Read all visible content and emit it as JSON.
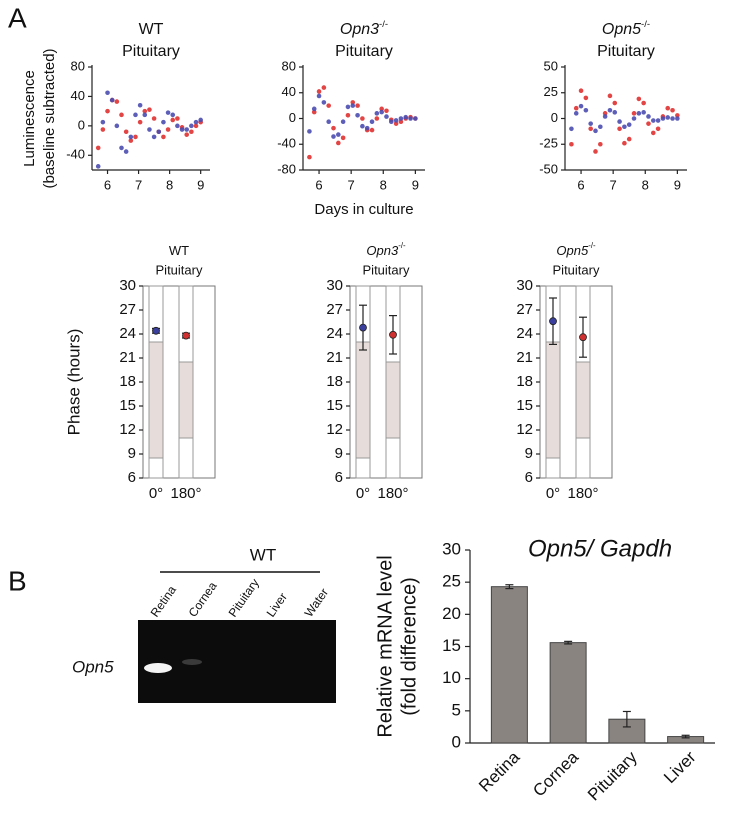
{
  "panel_labels": [
    "A",
    "B"
  ],
  "gel": {
    "group": "WT",
    "lanes": [
      "Retina",
      "Cornea",
      "Pituitary",
      "Liver",
      "Water"
    ],
    "gene": "Opn5"
  },
  "chart_data": [
    {
      "type": "line",
      "genotype": "WT",
      "title": "Pituitary",
      "ylabel": [
        "Luminescence",
        "(baseline subtracted)"
      ],
      "x": [
        5.7,
        5.85,
        6.0,
        6.15,
        6.3,
        6.45,
        6.6,
        6.75,
        6.9,
        7.05,
        7.2,
        7.35,
        7.5,
        7.65,
        7.8,
        7.95,
        8.1,
        8.25,
        8.4,
        8.55,
        8.7,
        8.85,
        9.0
      ],
      "series": [
        {
          "color": "#e03030",
          "values": [
            -30,
            -5,
            20,
            35,
            33,
            15,
            -8,
            -20,
            -15,
            5,
            20,
            22,
            10,
            -8,
            -15,
            -5,
            8,
            10,
            -2,
            -12,
            -8,
            0,
            5
          ]
        },
        {
          "color": "#4a4cb0",
          "values": [
            -55,
            5,
            45,
            35,
            0,
            -30,
            -35,
            -15,
            15,
            28,
            15,
            -5,
            -15,
            -8,
            5,
            18,
            15,
            0,
            -5,
            -5,
            0,
            5,
            8
          ]
        }
      ],
      "xlim": [
        5.5,
        9.3
      ],
      "xticks": [
        6,
        7,
        8,
        9
      ],
      "ylim": [
        -60,
        80
      ],
      "yticks": [
        -40,
        0,
        40,
        80
      ]
    },
    {
      "type": "line",
      "genotype": "Opn3",
      "genotype_sup": "-/-",
      "title": "Pituitary",
      "xlabel": "Days in culture",
      "x": [
        5.7,
        5.85,
        6.0,
        6.15,
        6.3,
        6.45,
        6.6,
        6.75,
        6.9,
        7.05,
        7.2,
        7.35,
        7.5,
        7.65,
        7.8,
        7.95,
        8.1,
        8.25,
        8.4,
        8.55,
        8.7,
        8.85,
        9.0
      ],
      "series": [
        {
          "color": "#e03030",
          "values": [
            -60,
            10,
            42,
            48,
            20,
            -15,
            -38,
            -30,
            5,
            25,
            20,
            0,
            -18,
            -18,
            0,
            15,
            12,
            -2,
            -8,
            -5,
            0,
            2,
            0
          ]
        },
        {
          "color": "#4a4cb0",
          "values": [
            -20,
            15,
            35,
            25,
            -5,
            -28,
            -25,
            -5,
            18,
            20,
            5,
            -12,
            -15,
            -5,
            8,
            10,
            3,
            -5,
            -3,
            0,
            2,
            0,
            0
          ]
        }
      ],
      "xlim": [
        5.5,
        9.3
      ],
      "xticks": [
        6,
        7,
        8,
        9
      ],
      "ylim": [
        -80,
        80
      ],
      "yticks": [
        -80,
        -40,
        0,
        40,
        80
      ]
    },
    {
      "type": "line",
      "genotype": "Opn5",
      "genotype_sup": "-/-",
      "title": "Pituitary",
      "x": [
        5.7,
        5.85,
        6.0,
        6.15,
        6.3,
        6.45,
        6.6,
        6.75,
        6.9,
        7.05,
        7.2,
        7.35,
        7.5,
        7.65,
        7.8,
        7.95,
        8.1,
        8.25,
        8.4,
        8.55,
        8.7,
        8.85,
        9.0
      ],
      "series": [
        {
          "color": "#e03030",
          "values": [
            -25,
            10,
            27,
            20,
            -10,
            -32,
            -25,
            5,
            22,
            15,
            -10,
            -24,
            -20,
            5,
            19,
            15,
            -5,
            -14,
            -10,
            2,
            10,
            8,
            3
          ]
        },
        {
          "color": "#4a4cb0",
          "values": [
            -10,
            5,
            12,
            8,
            -5,
            -12,
            -8,
            2,
            8,
            6,
            -3,
            -8,
            -6,
            0,
            5,
            6,
            2,
            -2,
            -2,
            0,
            1,
            0,
            0
          ]
        }
      ],
      "xlim": [
        5.5,
        9.3
      ],
      "xticks": [
        6,
        7,
        8,
        9
      ],
      "ylim": [
        -50,
        50
      ],
      "yticks": [
        -50,
        -25,
        0,
        25,
        50
      ]
    },
    {
      "type": "phase",
      "genotype": "WT",
      "title": "Pituitary",
      "ylabel": "Phase (hours)",
      "categories": [
        "0°",
        "180°"
      ],
      "values": [
        24.4,
        23.8
      ],
      "errors": [
        0.3,
        0.3
      ],
      "colors": [
        "#3a3f9e",
        "#d03030"
      ],
      "ranges": [
        [
          8.5,
          23
        ],
        [
          11,
          20.5
        ]
      ],
      "ylim": [
        6,
        30
      ],
      "yticks": [
        6,
        9,
        12,
        15,
        18,
        21,
        24,
        27,
        30
      ]
    },
    {
      "type": "phase",
      "genotype": "Opn3",
      "genotype_sup": "-/-",
      "title": "Pituitary",
      "categories": [
        "0°",
        "180°"
      ],
      "values": [
        24.8,
        23.9
      ],
      "errors": [
        2.8,
        2.4
      ],
      "colors": [
        "#3a3f9e",
        "#d03030"
      ],
      "ranges": [
        [
          8.5,
          23
        ],
        [
          11,
          20.5
        ]
      ],
      "ylim": [
        6,
        30
      ],
      "yticks": [
        6,
        9,
        12,
        15,
        18,
        21,
        24,
        27,
        30
      ]
    },
    {
      "type": "phase",
      "genotype": "Opn5",
      "genotype_sup": "-/-",
      "title": "Pituitary",
      "categories": [
        "0°",
        "180°"
      ],
      "values": [
        25.6,
        23.6
      ],
      "errors": [
        2.9,
        2.5
      ],
      "colors": [
        "#3a3f9e",
        "#d03030"
      ],
      "ranges": [
        [
          8.5,
          23
        ],
        [
          11,
          20.5
        ]
      ],
      "ylim": [
        6,
        30
      ],
      "yticks": [
        6,
        9,
        12,
        15,
        18,
        21,
        24,
        27,
        30
      ]
    },
    {
      "type": "bar",
      "title": "Opn5/ Gapdh",
      "ylabel": [
        "Relative mRNA level",
        "(fold difference)"
      ],
      "categories": [
        "Retina",
        "Cornea",
        "Pituitary",
        "Liver"
      ],
      "values": [
        24.3,
        15.6,
        3.7,
        1.0
      ],
      "errors": [
        0.3,
        0.2,
        1.2,
        0.2
      ],
      "color": "#8a8480",
      "ylim": [
        0,
        30
      ],
      "yticks": [
        0,
        5,
        10,
        15,
        20,
        25,
        30
      ]
    }
  ]
}
